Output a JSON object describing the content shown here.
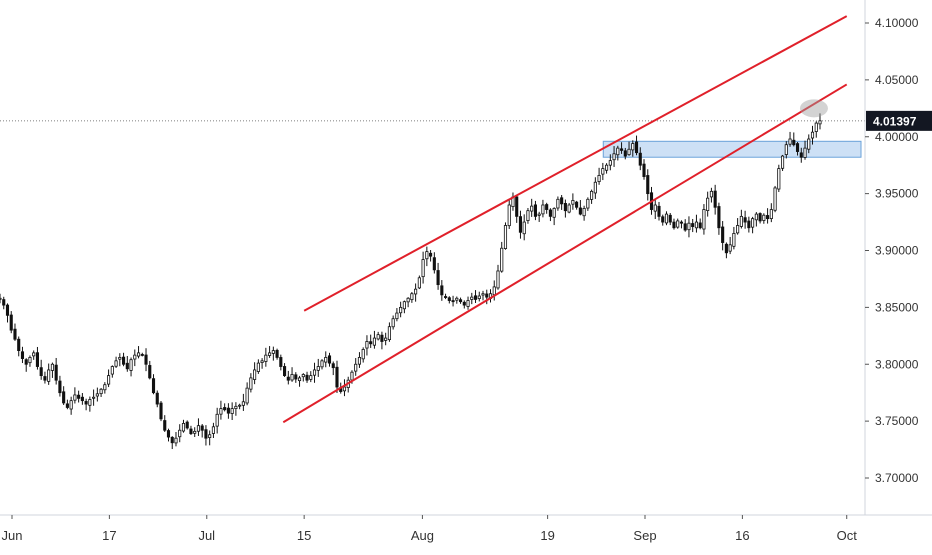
{
  "chart_data": {
    "type": "candlestick",
    "title": "",
    "xlabel": "",
    "ylabel": "",
    "ylim": [
      3.66,
      4.125
    ],
    "y_ticks": [
      {
        "value": 3.7,
        "label": "3.70000"
      },
      {
        "value": 3.75,
        "label": "3.75000"
      },
      {
        "value": 3.8,
        "label": "3.80000"
      },
      {
        "value": 3.85,
        "label": "3.85000"
      },
      {
        "value": 3.9,
        "label": "3.90000"
      },
      {
        "value": 3.95,
        "label": "3.95000"
      },
      {
        "value": 4.0,
        "label": "4.00000"
      },
      {
        "value": 4.05,
        "label": "4.05000"
      },
      {
        "value": 4.1,
        "label": "4.10000"
      }
    ],
    "x_ticks": [
      "Jun",
      "17",
      "Jul",
      "15",
      "Aug",
      "19",
      "Sep",
      "16",
      "Oct"
    ],
    "last_price": {
      "value": 4.01397,
      "label": "4.01397"
    },
    "grid": false,
    "colors": {
      "candles": "#111111",
      "channel": "#e0202a",
      "zone_fill": "#bcd6f2",
      "zone_border": "#6aa2d9",
      "price_tag": "#131722",
      "highlight": "#9e9e9e"
    },
    "candles_start_index": 0,
    "candles_close": [
      3.858,
      3.852,
      3.843,
      3.83,
      3.822,
      3.812,
      3.805,
      3.8,
      3.806,
      3.81,
      3.798,
      3.79,
      3.786,
      3.795,
      3.8,
      3.786,
      3.775,
      3.766,
      3.762,
      3.768,
      3.773,
      3.77,
      3.768,
      3.765,
      3.769,
      3.771,
      3.774,
      3.778,
      3.782,
      3.79,
      3.798,
      3.803,
      3.806,
      3.8,
      3.796,
      3.804,
      3.808,
      3.81,
      3.808,
      3.8,
      3.788,
      3.775,
      3.765,
      3.752,
      3.742,
      3.736,
      3.731,
      3.735,
      3.742,
      3.748,
      3.744,
      3.739,
      3.741,
      3.746,
      3.742,
      3.735,
      3.738,
      3.745,
      3.756,
      3.761,
      3.76,
      3.757,
      3.761,
      3.763,
      3.764,
      3.767,
      3.779,
      3.788,
      3.795,
      3.801,
      3.803,
      3.808,
      3.81,
      3.812,
      3.806,
      3.798,
      3.79,
      3.786,
      3.791,
      3.787,
      3.788,
      3.791,
      3.786,
      3.79,
      3.795,
      3.798,
      3.803,
      3.806,
      3.801,
      3.797,
      3.78,
      3.776,
      3.78,
      3.786,
      3.793,
      3.8,
      3.806,
      3.813,
      3.82,
      3.818,
      3.823,
      3.826,
      3.82,
      3.823,
      3.833,
      3.84,
      3.845,
      3.85,
      3.855,
      3.858,
      3.862,
      3.866,
      3.876,
      3.892,
      3.899,
      3.895,
      3.883,
      3.87,
      3.861,
      3.859,
      3.856,
      3.855,
      3.858,
      3.855,
      3.852,
      3.856,
      3.859,
      3.857,
      3.86,
      3.862,
      3.859,
      3.862,
      3.868,
      3.882,
      3.902,
      3.922,
      3.94,
      3.947,
      3.93,
      3.916,
      3.925,
      3.935,
      3.939,
      3.93,
      3.932,
      3.94,
      3.936,
      3.93,
      3.937,
      3.945,
      3.941,
      3.935,
      3.94,
      3.944,
      3.938,
      3.932,
      3.937,
      3.945,
      3.952,
      3.96,
      3.966,
      3.972,
      3.975,
      3.979,
      3.985,
      3.99,
      3.988,
      3.983,
      3.989,
      3.994,
      3.986,
      3.975,
      3.965,
      3.95,
      3.936,
      3.94,
      3.93,
      3.925,
      3.932,
      3.925,
      3.92,
      3.926,
      3.924,
      3.918,
      3.924,
      3.921,
      3.925,
      3.92,
      3.936,
      3.946,
      3.952,
      3.938,
      3.92,
      3.907,
      3.898,
      3.905,
      3.915,
      3.922,
      3.93,
      3.925,
      3.92,
      3.928,
      3.932,
      3.926,
      3.931,
      3.928,
      3.936,
      3.955,
      3.972,
      3.983,
      3.993,
      3.998,
      3.993,
      3.987,
      3.982,
      3.99,
      3.998,
      4.004,
      4.012,
      4.014
    ],
    "channel": {
      "upper": {
        "start": {
          "date": "2019-07-15",
          "value": 3.847
        },
        "end": {
          "date": "2019-10-01",
          "value": 4.106
        }
      },
      "lower": {
        "start": {
          "date": "2019-07-12",
          "value": 3.749
        },
        "end": {
          "date": "2019-10-01",
          "value": 4.046
        }
      }
    },
    "zone": {
      "low": 3.982,
      "high": 3.996,
      "from": "2019-08-27"
    },
    "highlight": {
      "date": "2019-09-26",
      "value": 4.025
    },
    "annotations": []
  }
}
